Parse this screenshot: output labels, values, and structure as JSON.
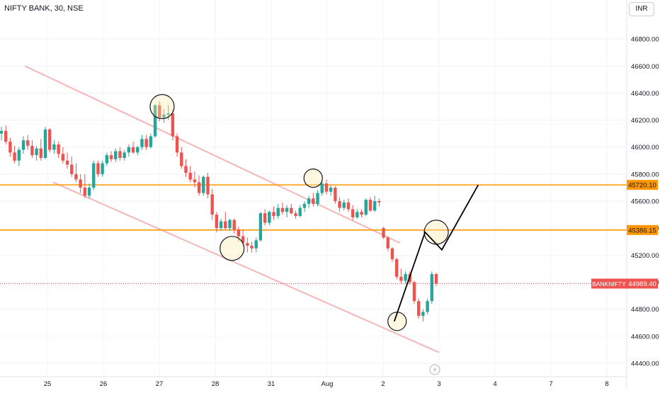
{
  "header": {
    "title": "NIFTY BANK, 30, NSE",
    "currency": "INR"
  },
  "colors": {
    "up": "#26a69a",
    "down": "#ef5350",
    "level": "#ff9800",
    "channel": "#f7b6b6",
    "projection": "#000000"
  },
  "icons": {
    "replay": "lightning-icon"
  },
  "chart_data": {
    "type": "candlestick",
    "symbol": "BANKNIFTY",
    "timeframe": "30",
    "exchange": "NSE",
    "x_ticks": [
      "25",
      "26",
      "27",
      "28",
      "31",
      "Aug",
      "2",
      "3",
      "4",
      "7",
      "8"
    ],
    "y_ticks": [
      "44400.00",
      "44600.00",
      "44800.00",
      "45000.00",
      "45200.00",
      "45400.00",
      "45600.00",
      "45800.00",
      "46000.00",
      "46200.00",
      "46400.00",
      "46600.00",
      "46800.00"
    ],
    "ylim": [
      44300,
      47000
    ],
    "last_price": {
      "label": "BANKNIFTY",
      "value": "44989.40",
      "y": 44989.4
    },
    "levels": [
      {
        "label": "45720.10",
        "value": 45720.1
      },
      {
        "label": "45386.15",
        "value": 45386.15
      }
    ],
    "channel": {
      "upper": [
        [
          0.6,
          46600
        ],
        [
          7.3,
          45290
        ]
      ],
      "lower": [
        [
          1.1,
          45740
        ],
        [
          8.0,
          44480
        ]
      ]
    },
    "projection": [
      [
        7.2,
        44710
      ],
      [
        7.75,
        45370
      ],
      [
        8.05,
        45240
      ],
      [
        8.7,
        45720
      ]
    ],
    "swing_circles": [
      [
        3.05,
        46300
      ],
      [
        4.3,
        45250
      ],
      [
        5.75,
        45770
      ],
      [
        7.25,
        44710
      ],
      [
        7.95,
        45370
      ]
    ],
    "ohlc": [
      [
        46100,
        46150,
        46050,
        46120
      ],
      [
        46120,
        46160,
        46020,
        46040
      ],
      [
        46040,
        46070,
        45930,
        45960
      ],
      [
        45960,
        46010,
        45880,
        45900
      ],
      [
        45900,
        46000,
        45860,
        45980
      ],
      [
        45980,
        46080,
        45950,
        46050
      ],
      [
        46050,
        46090,
        45980,
        46010
      ],
      [
        46010,
        46050,
        45920,
        45940
      ],
      [
        45940,
        46010,
        45900,
        45990
      ],
      [
        45990,
        46060,
        45900,
        45920
      ],
      [
        45920,
        46150,
        45910,
        46130
      ],
      [
        46130,
        46140,
        45960,
        45980
      ],
      [
        45980,
        46050,
        45950,
        46020
      ],
      [
        46020,
        46040,
        45920,
        45950
      ],
      [
        45950,
        46000,
        45880,
        45900
      ],
      [
        45900,
        45960,
        45840,
        45870
      ],
      [
        45870,
        45930,
        45780,
        45800
      ],
      [
        45800,
        45880,
        45740,
        45760
      ],
      [
        45760,
        45800,
        45660,
        45700
      ],
      [
        45700,
        45800,
        45620,
        45640
      ],
      [
        45640,
        45730,
        45620,
        45700
      ],
      [
        45700,
        45900,
        45680,
        45880
      ],
      [
        45880,
        45900,
        45780,
        45800
      ],
      [
        45800,
        45900,
        45780,
        45880
      ],
      [
        45880,
        45960,
        45860,
        45940
      ],
      [
        45940,
        45970,
        45890,
        45910
      ],
      [
        45910,
        45990,
        45890,
        45970
      ],
      [
        45970,
        46000,
        45900,
        45920
      ],
      [
        45920,
        45980,
        45900,
        45960
      ],
      [
        45960,
        46020,
        45930,
        46000
      ],
      [
        46000,
        46040,
        45950,
        45960
      ],
      [
        45960,
        46010,
        45940,
        46000
      ],
      [
        46000,
        46090,
        45980,
        46060
      ],
      [
        46060,
        46090,
        45980,
        46000
      ],
      [
        46000,
        46100,
        45990,
        46080
      ],
      [
        46080,
        46320,
        46070,
        46310
      ],
      [
        46310,
        46340,
        46190,
        46220
      ],
      [
        46220,
        46280,
        46180,
        46240
      ],
      [
        46240,
        46310,
        46200,
        46250
      ],
      [
        46250,
        46280,
        46050,
        46080
      ],
      [
        46080,
        46100,
        45930,
        45960
      ],
      [
        45960,
        46000,
        45840,
        45860
      ],
      [
        45860,
        45910,
        45780,
        45810
      ],
      [
        45810,
        45860,
        45740,
        45760
      ],
      [
        45760,
        45820,
        45700,
        45740
      ],
      [
        45740,
        45790,
        45640,
        45660
      ],
      [
        45660,
        45790,
        45640,
        45780
      ],
      [
        45780,
        45810,
        45620,
        45650
      ],
      [
        45650,
        45690,
        45460,
        45500
      ],
      [
        45500,
        45520,
        45370,
        45400
      ],
      [
        45400,
        45470,
        45380,
        45450
      ],
      [
        45450,
        45520,
        45390,
        45400
      ],
      [
        45400,
        45470,
        45380,
        45460
      ],
      [
        45460,
        45470,
        45360,
        45390
      ],
      [
        45390,
        45410,
        45300,
        45340
      ],
      [
        45340,
        45390,
        45270,
        45290
      ],
      [
        45290,
        45330,
        45220,
        45270
      ],
      [
        45270,
        45300,
        45220,
        45250
      ],
      [
        45250,
        45330,
        45220,
        45310
      ],
      [
        45310,
        45520,
        45300,
        45510
      ],
      [
        45510,
        45540,
        45420,
        45440
      ],
      [
        45440,
        45530,
        45420,
        45520
      ],
      [
        45520,
        45560,
        45460,
        45490
      ],
      [
        45490,
        45580,
        45470,
        45550
      ],
      [
        45550,
        45590,
        45500,
        45520
      ],
      [
        45520,
        45570,
        45480,
        45550
      ],
      [
        45550,
        45580,
        45500,
        45510
      ],
      [
        45510,
        45530,
        45470,
        45490
      ],
      [
        45490,
        45570,
        45480,
        45550
      ],
      [
        45550,
        45600,
        45520,
        45580
      ],
      [
        45580,
        45640,
        45550,
        45620
      ],
      [
        45620,
        45660,
        45560,
        45580
      ],
      [
        45580,
        45680,
        45560,
        45660
      ],
      [
        45660,
        45750,
        45640,
        45730
      ],
      [
        45730,
        45760,
        45650,
        45670
      ],
      [
        45670,
        45720,
        45640,
        45700
      ],
      [
        45700,
        45710,
        45580,
        45600
      ],
      [
        45600,
        45630,
        45520,
        45550
      ],
      [
        45550,
        45610,
        45530,
        45590
      ],
      [
        45590,
        45620,
        45520,
        45540
      ],
      [
        45540,
        45570,
        45460,
        45480
      ],
      [
        45480,
        45540,
        45470,
        45520
      ],
      [
        45520,
        45540,
        45480,
        45500
      ],
      [
        45500,
        45620,
        45490,
        45610
      ],
      [
        45610,
        45630,
        45520,
        45530
      ],
      [
        45530,
        45640,
        45520,
        45600
      ],
      [
        45600,
        45620,
        45560,
        45590
      ],
      [
        45400,
        45410,
        45320,
        45330
      ],
      [
        45330,
        45340,
        45230,
        45250
      ],
      [
        45250,
        45260,
        45150,
        45170
      ],
      [
        45170,
        45180,
        45020,
        45040
      ],
      [
        45040,
        45100,
        44990,
        45010
      ],
      [
        45010,
        45080,
        44990,
        45060
      ],
      [
        45060,
        45080,
        44980,
        45000
      ],
      [
        45000,
        45010,
        44840,
        44860
      ],
      [
        44860,
        44880,
        44730,
        44750
      ],
      [
        44750,
        44800,
        44710,
        44780
      ],
      [
        44780,
        44880,
        44760,
        44860
      ],
      [
        44860,
        45080,
        44840,
        45060
      ],
      [
        45060,
        45070,
        44970,
        44990
      ]
    ]
  }
}
